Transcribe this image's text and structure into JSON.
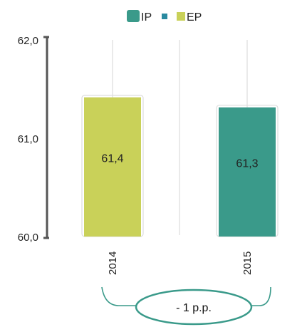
{
  "chart_data": {
    "type": "bar",
    "categories": [
      "2014",
      "2015"
    ],
    "series": [
      {
        "name": "EP",
        "color": "#c9d159",
        "values": [
          61.4,
          null
        ]
      },
      {
        "name": "IP",
        "color": "#3a9a8a",
        "values": [
          null,
          61.3
        ]
      }
    ],
    "data_labels": [
      "61,4",
      "61,3"
    ],
    "y_ticks": [
      "60,0",
      "61,0",
      "62,0"
    ],
    "ylim": [
      60.0,
      62.0
    ],
    "legend": {
      "position": "top",
      "items": [
        {
          "label": "IP",
          "color": "#3a9a8a"
        },
        {
          "label": "",
          "color": "#2a8aa0"
        },
        {
          "label": "EP",
          "color": "#c9d159"
        }
      ]
    },
    "annotation": {
      "text": "- 1 p.p."
    },
    "grid": false
  }
}
